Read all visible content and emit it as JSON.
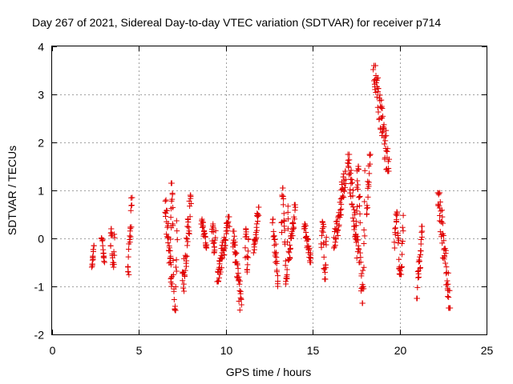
{
  "chart_data": {
    "type": "scatter",
    "title": "Day 267 of 2021, Sidereal Day-to-day VTEC variation (SDTVAR) for receiver p714",
    "xlabel": "GPS time / hours",
    "ylabel": "SDTVAR / TECUs",
    "xlim": [
      0,
      25
    ],
    "ylim": [
      -2,
      4
    ],
    "xticks": [
      0,
      5,
      10,
      15,
      20,
      25
    ],
    "yticks": [
      -2,
      -1,
      0,
      1,
      2,
      3,
      4
    ],
    "grid": true,
    "marker": "+",
    "color": "#e00000",
    "segments": [
      {
        "x0": 2.3,
        "x1": 2.4,
        "y0": -0.6,
        "y1": -0.15
      },
      {
        "x0": 2.85,
        "x1": 3.0,
        "y0": -0.5,
        "y1": 0.05
      },
      {
        "x0": 3.35,
        "x1": 3.6,
        "y0": -0.6,
        "y1": 0.2
      },
      {
        "x0": 4.35,
        "x1": 4.6,
        "y0": -0.95,
        "y1": 0.85
      },
      {
        "x0": 6.5,
        "x1": 6.9,
        "y0": -1.0,
        "y1": 0.8
      },
      {
        "x0": 6.8,
        "x1": 7.2,
        "y0": -1.5,
        "y1": 1.15
      },
      {
        "x0": 7.5,
        "x1": 8.0,
        "y0": -1.1,
        "y1": 0.9
      },
      {
        "x0": 8.6,
        "x1": 8.9,
        "y0": -0.2,
        "y1": 0.4
      },
      {
        "x0": 9.2,
        "x1": 9.4,
        "y0": -0.3,
        "y1": 0.3
      },
      {
        "x0": 9.5,
        "x1": 10.2,
        "y0": -0.9,
        "y1": 0.45
      },
      {
        "x0": 10.4,
        "x1": 10.9,
        "y0": -1.5,
        "y1": 0.15
      },
      {
        "x0": 11.1,
        "x1": 11.3,
        "y0": -0.7,
        "y1": 0.2
      },
      {
        "x0": 11.6,
        "x1": 11.9,
        "y0": -0.3,
        "y1": 0.65
      },
      {
        "x0": 12.7,
        "x1": 13.0,
        "y0": -1.0,
        "y1": 0.4
      },
      {
        "x0": 13.2,
        "x1": 13.6,
        "y0": -0.95,
        "y1": 1.05
      },
      {
        "x0": 13.6,
        "x1": 14.0,
        "y0": -0.5,
        "y1": 0.7
      },
      {
        "x0": 14.5,
        "x1": 14.9,
        "y0": -0.5,
        "y1": 0.3
      },
      {
        "x0": 15.5,
        "x1": 15.8,
        "y0": -0.85,
        "y1": 0.35
      },
      {
        "x0": 16.2,
        "x1": 16.9,
        "y0": -0.2,
        "y1": 1.4
      },
      {
        "x0": 17.0,
        "x1": 17.7,
        "y0": -0.5,
        "y1": 1.75
      },
      {
        "x0": 17.5,
        "x1": 18.0,
        "y0": -1.35,
        "y1": 1.5
      },
      {
        "x0": 18.1,
        "x1": 18.3,
        "y0": 0.5,
        "y1": 1.75
      },
      {
        "x0": 18.5,
        "x1": 19.4,
        "y0": 1.4,
        "y1": 3.6
      },
      {
        "x0": 19.7,
        "x1": 20.2,
        "y0": -0.75,
        "y1": 0.55
      },
      {
        "x0": 21.0,
        "x1": 21.3,
        "y0": -1.25,
        "y1": 0.25
      },
      {
        "x0": 22.2,
        "x1": 22.9,
        "y0": -1.45,
        "y1": 0.95
      }
    ]
  }
}
